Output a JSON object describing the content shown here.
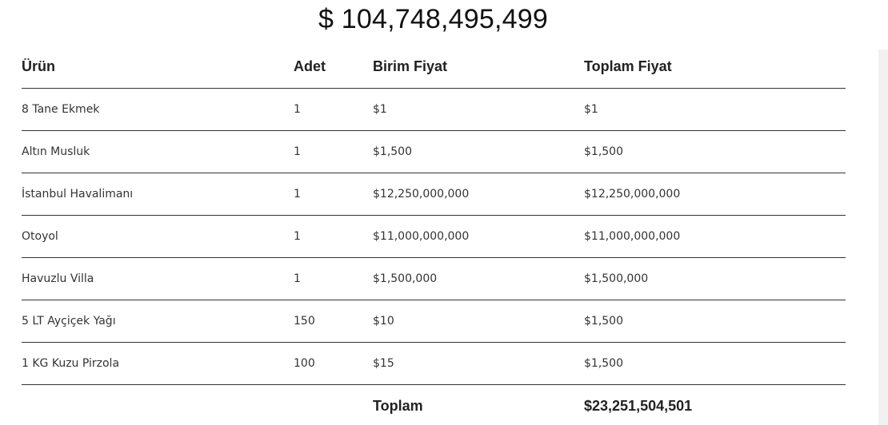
{
  "balance": "$ 104,748,495,499",
  "table": {
    "headers": [
      "Ürün",
      "Adet",
      "Birim Fiyat",
      "Toplam Fiyat"
    ],
    "rows": [
      [
        "8 Tane Ekmek",
        "1",
        "$1",
        "$1"
      ],
      [
        "Altın Musluk",
        "1",
        "$1,500",
        "$1,500"
      ],
      [
        "İstanbul Havalimanı",
        "1",
        "$12,250,000,000",
        "$12,250,000,000"
      ],
      [
        "Otoyol",
        "1",
        "$11,000,000,000",
        "$11,000,000,000"
      ],
      [
        "Havuzlu Villa",
        "1",
        "$1,500,000",
        "$1,500,000"
      ],
      [
        "5 LT Ayçiçek Yağı",
        "150",
        "$10",
        "$1,500"
      ],
      [
        "1 KG Kuzu Pirzola",
        "100",
        "$15",
        "$1,500"
      ]
    ],
    "total_label": "Toplam",
    "total_value": "$23,251,504,501"
  }
}
